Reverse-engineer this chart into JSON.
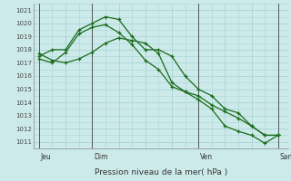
{
  "bg_color": "#cdeaea",
  "grid_color": "#aad4d4",
  "line_color": "#1a6b1a",
  "ylim": [
    1010.5,
    1021.5
  ],
  "yticks": [
    1011,
    1012,
    1013,
    1014,
    1015,
    1016,
    1017,
    1018,
    1019,
    1020,
    1021
  ],
  "xlim": [
    -5,
    225
  ],
  "xlabel": "Pression niveau de la mer( hPa )",
  "day_ticks": [
    0,
    48,
    144,
    216
  ],
  "day_labels": [
    "Jeu",
    "Dim",
    "Ven",
    "Sam"
  ],
  "series": [
    {
      "x": [
        0,
        12,
        24,
        36,
        48,
        60,
        72,
        84,
        96,
        108,
        120,
        132,
        144,
        156,
        168,
        180,
        192,
        204,
        216
      ],
      "y": [
        1017.5,
        1018.0,
        1018.0,
        1019.5,
        1020.0,
        1020.5,
        1020.3,
        1019.0,
        1018.0,
        1018.0,
        1017.5,
        1016.0,
        1015.0,
        1014.5,
        1013.5,
        1013.2,
        1012.2,
        1011.5,
        1011.5
      ]
    },
    {
      "x": [
        0,
        12,
        24,
        36,
        48,
        60,
        72,
        84,
        96,
        108,
        120,
        132,
        144,
        156,
        168,
        180,
        192,
        204,
        216
      ],
      "y": [
        1017.7,
        1017.2,
        1017.0,
        1017.3,
        1017.8,
        1018.5,
        1018.9,
        1018.7,
        1018.5,
        1017.7,
        1015.5,
        1014.8,
        1014.5,
        1013.8,
        1013.3,
        1012.8,
        1012.2,
        1011.5,
        1011.5
      ]
    },
    {
      "x": [
        0,
        12,
        24,
        36,
        48,
        60,
        72,
        84,
        96,
        108,
        120,
        132,
        144,
        156,
        168,
        180,
        192,
        204,
        216
      ],
      "y": [
        1017.3,
        1017.0,
        1017.8,
        1019.2,
        1019.7,
        1019.9,
        1019.3,
        1018.4,
        1017.2,
        1016.5,
        1015.2,
        1014.8,
        1014.2,
        1013.5,
        1012.2,
        1011.8,
        1011.5,
        1010.9,
        1011.5
      ]
    }
  ]
}
